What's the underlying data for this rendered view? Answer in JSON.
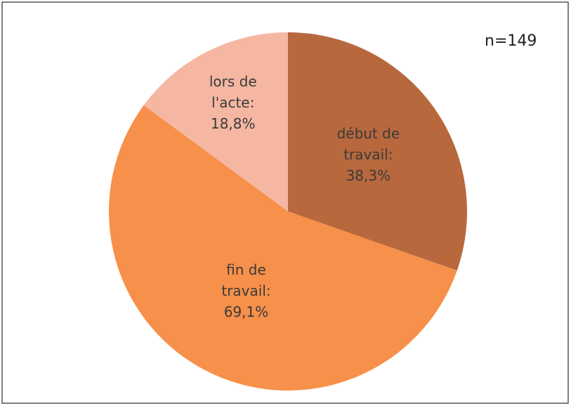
{
  "chart_data": {
    "type": "pie",
    "annotation": "n=149",
    "categories": [
      "début de travail:",
      "fin de travail:",
      "lors de l'acte:"
    ],
    "values": [
      38.3,
      69.1,
      18.8
    ],
    "value_labels": [
      "38,3%",
      "69,1%",
      "18,8%"
    ],
    "colors": [
      "#b8683d",
      "#f7904a",
      "#f5b7a2"
    ]
  }
}
